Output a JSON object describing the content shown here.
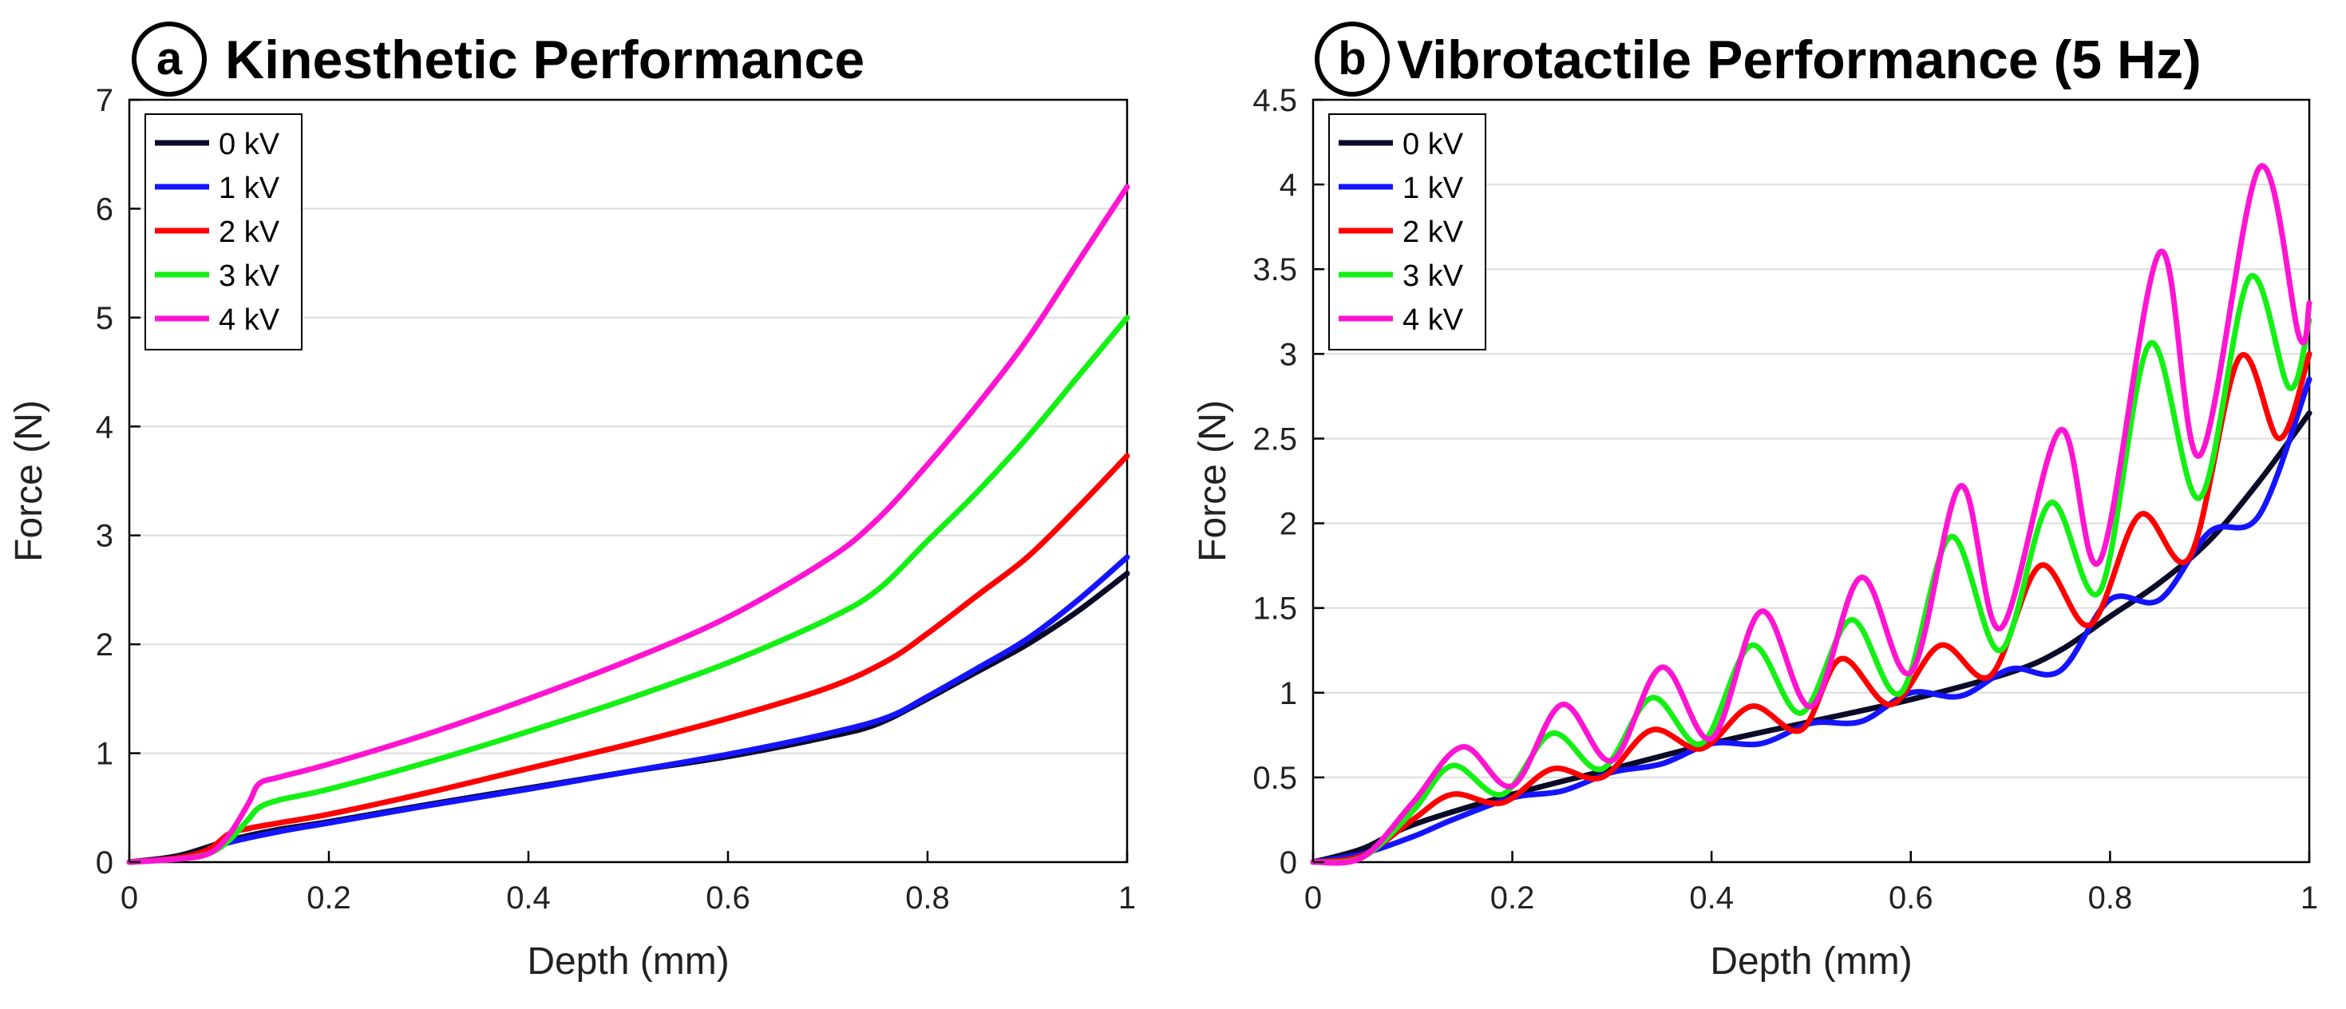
{
  "chart_data": [
    {
      "type": "line",
      "panel_label": "a",
      "title": "Kinesthetic Performance",
      "xlabel": "Depth (mm)",
      "ylabel": "Force (N)",
      "xlim": [
        0,
        1
      ],
      "ylim": [
        0,
        7
      ],
      "xticks": [
        0,
        0.2,
        0.4,
        0.6,
        0.8,
        1
      ],
      "xtick_labels": [
        "0",
        "0.2",
        "0.4",
        "0.6",
        "0.8",
        "1"
      ],
      "yticks": [
        0,
        1,
        2,
        3,
        4,
        5,
        6,
        7
      ],
      "ytick_labels": [
        "0",
        "1",
        "2",
        "3",
        "4",
        "5",
        "6",
        "7"
      ],
      "grid": "horizontal",
      "legend_position": "top-left",
      "series": [
        {
          "name": "0 kV",
          "color": "#0a0a28",
          "x": [
            0,
            0.05,
            0.1,
            0.15,
            0.2,
            0.3,
            0.4,
            0.5,
            0.6,
            0.7,
            0.75,
            0.8,
            0.85,
            0.9,
            0.95,
            1.0
          ],
          "y": [
            0,
            0.06,
            0.2,
            0.3,
            0.37,
            0.53,
            0.68,
            0.83,
            0.97,
            1.15,
            1.27,
            1.5,
            1.75,
            2.0,
            2.3,
            2.65
          ]
        },
        {
          "name": "1 kV",
          "color": "#1414ff",
          "x": [
            0,
            0.05,
            0.08,
            0.1,
            0.15,
            0.2,
            0.3,
            0.4,
            0.5,
            0.6,
            0.7,
            0.76,
            0.8,
            0.85,
            0.9,
            0.95,
            1.0
          ],
          "y": [
            0,
            0.04,
            0.1,
            0.18,
            0.28,
            0.36,
            0.52,
            0.67,
            0.83,
            0.99,
            1.18,
            1.33,
            1.52,
            1.78,
            2.05,
            2.4,
            2.8
          ]
        },
        {
          "name": "2 kV",
          "color": "#ff0000",
          "x": [
            0,
            0.05,
            0.08,
            0.1,
            0.12,
            0.15,
            0.2,
            0.3,
            0.4,
            0.5,
            0.6,
            0.7,
            0.76,
            0.8,
            0.85,
            0.9,
            0.95,
            1.0
          ],
          "y": [
            0,
            0.04,
            0.12,
            0.26,
            0.31,
            0.36,
            0.44,
            0.64,
            0.86,
            1.08,
            1.32,
            1.6,
            1.85,
            2.1,
            2.45,
            2.8,
            3.25,
            3.73
          ]
        },
        {
          "name": "3 kV",
          "color": "#14f014",
          "x": [
            0,
            0.05,
            0.08,
            0.1,
            0.12,
            0.13,
            0.15,
            0.2,
            0.3,
            0.4,
            0.5,
            0.6,
            0.7,
            0.75,
            0.8,
            0.85,
            0.9,
            0.95,
            1.0
          ],
          "y": [
            0,
            0.03,
            0.08,
            0.2,
            0.4,
            0.5,
            0.57,
            0.67,
            0.92,
            1.2,
            1.5,
            1.83,
            2.23,
            2.5,
            2.95,
            3.4,
            3.9,
            4.45,
            5.0
          ]
        },
        {
          "name": "4 kV",
          "color": "#ff14d2",
          "x": [
            0,
            0.05,
            0.08,
            0.1,
            0.12,
            0.13,
            0.15,
            0.2,
            0.3,
            0.4,
            0.5,
            0.6,
            0.7,
            0.75,
            0.8,
            0.85,
            0.9,
            0.95,
            1.0
          ],
          "y": [
            0,
            0.03,
            0.08,
            0.25,
            0.55,
            0.72,
            0.78,
            0.9,
            1.18,
            1.5,
            1.85,
            2.25,
            2.78,
            3.15,
            3.65,
            4.2,
            4.8,
            5.5,
            6.2
          ]
        }
      ]
    },
    {
      "type": "line",
      "panel_label": "b",
      "title": "Vibrotactile Performance (5 Hz)",
      "xlabel": "Depth (mm)",
      "ylabel": "Force (N)",
      "xlim": [
        0,
        1
      ],
      "ylim": [
        0,
        4.5
      ],
      "xticks": [
        0,
        0.2,
        0.4,
        0.6,
        0.8,
        1
      ],
      "xtick_labels": [
        "0",
        "0.2",
        "0.4",
        "0.6",
        "0.8",
        "1"
      ],
      "yticks": [
        0,
        0.5,
        1,
        1.5,
        2,
        2.5,
        3,
        3.5,
        4,
        4.5
      ],
      "ytick_labels": [
        "0",
        "0.5",
        "1",
        "1.5",
        "2",
        "2.5",
        "3",
        "3.5",
        "4",
        "4.5"
      ],
      "grid": "horizontal",
      "legend_position": "top-left",
      "series": [
        {
          "name": "0 kV",
          "color": "#0a0a28",
          "x": [
            0,
            0.05,
            0.1,
            0.2,
            0.3,
            0.4,
            0.5,
            0.6,
            0.7,
            0.75,
            0.8,
            0.85,
            0.9,
            0.95,
            1.0
          ],
          "y": [
            0,
            0.08,
            0.22,
            0.4,
            0.55,
            0.7,
            0.83,
            0.96,
            1.12,
            1.25,
            1.45,
            1.65,
            1.9,
            2.25,
            2.65
          ]
        },
        {
          "name": "1 kV",
          "color": "#1414ff",
          "x": [
            0,
            0.05,
            0.1,
            0.14,
            0.2,
            0.25,
            0.3,
            0.35,
            0.4,
            0.45,
            0.5,
            0.55,
            0.6,
            0.65,
            0.7,
            0.75,
            0.8,
            0.85,
            0.9,
            0.95,
            1.0
          ],
          "y": [
            0,
            0.05,
            0.15,
            0.25,
            0.38,
            0.42,
            0.53,
            0.58,
            0.7,
            0.7,
            0.82,
            0.83,
            1.0,
            0.98,
            1.14,
            1.13,
            1.55,
            1.55,
            1.95,
            2.05,
            2.85
          ]
        },
        {
          "name": "2 kV",
          "color": "#ff0000",
          "x": [
            0,
            0.05,
            0.1,
            0.14,
            0.19,
            0.24,
            0.29,
            0.34,
            0.39,
            0.44,
            0.49,
            0.53,
            0.58,
            0.63,
            0.68,
            0.73,
            0.78,
            0.83,
            0.88,
            0.93,
            0.97,
            1.0
          ],
          "y": [
            0,
            0.04,
            0.25,
            0.4,
            0.35,
            0.55,
            0.5,
            0.78,
            0.67,
            0.92,
            0.78,
            1.2,
            0.93,
            1.28,
            1.1,
            1.75,
            1.4,
            2.05,
            1.8,
            2.98,
            2.5,
            3.0
          ]
        },
        {
          "name": "3 kV",
          "color": "#14f014",
          "x": [
            0,
            0.05,
            0.1,
            0.14,
            0.19,
            0.24,
            0.29,
            0.34,
            0.39,
            0.44,
            0.49,
            0.54,
            0.59,
            0.64,
            0.69,
            0.74,
            0.79,
            0.84,
            0.89,
            0.94,
            0.98,
            1.0
          ],
          "y": [
            0,
            0.03,
            0.3,
            0.57,
            0.4,
            0.76,
            0.55,
            0.97,
            0.7,
            1.28,
            0.88,
            1.43,
            1.0,
            1.92,
            1.25,
            2.12,
            1.6,
            3.06,
            2.15,
            3.45,
            2.8,
            3.2
          ]
        },
        {
          "name": "4 kV",
          "color": "#ff14d2",
          "x": [
            0,
            0.05,
            0.1,
            0.15,
            0.2,
            0.25,
            0.3,
            0.35,
            0.4,
            0.45,
            0.5,
            0.55,
            0.6,
            0.65,
            0.69,
            0.75,
            0.79,
            0.85,
            0.89,
            0.95,
            0.99,
            1.0
          ],
          "y": [
            0,
            0.03,
            0.35,
            0.68,
            0.45,
            0.93,
            0.6,
            1.15,
            0.73,
            1.48,
            0.92,
            1.68,
            1.12,
            2.22,
            1.38,
            2.55,
            1.78,
            3.6,
            2.4,
            4.1,
            3.1,
            3.3
          ]
        }
      ]
    }
  ]
}
